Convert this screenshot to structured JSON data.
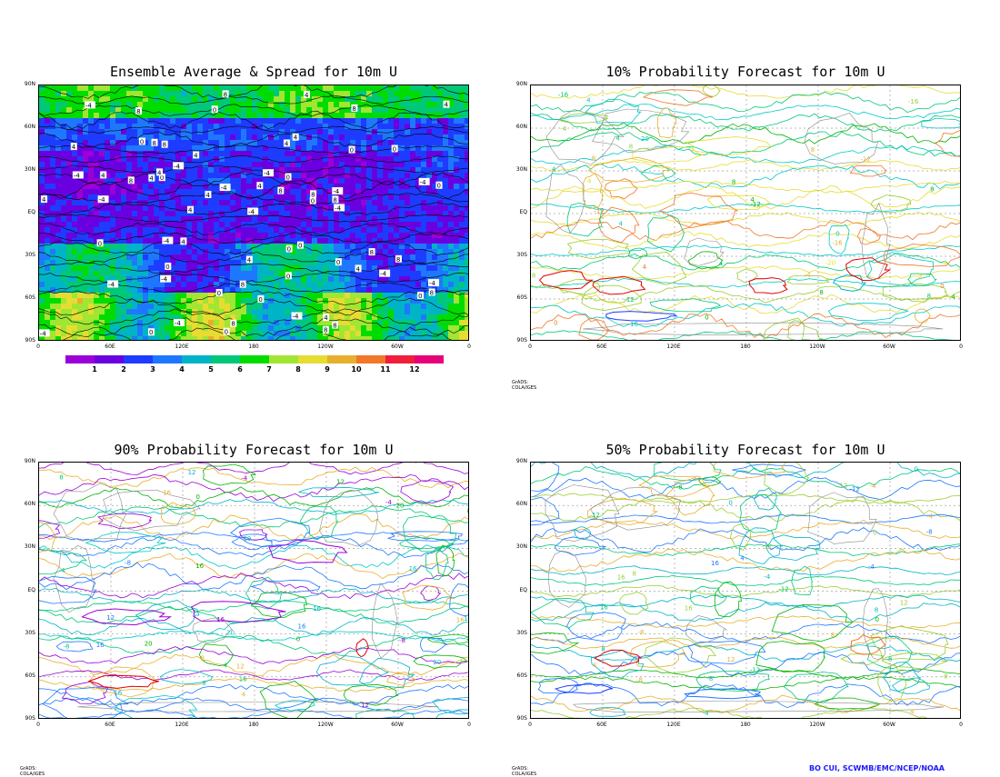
{
  "chart_data": [
    {
      "type": "heatmap",
      "title": "Ensemble Average & Spread for 10m U",
      "y_ticks": [
        "90N",
        "60N",
        "30N",
        "EQ",
        "30S",
        "60S",
        "90S"
      ],
      "x_ticks": [
        "0",
        "60E",
        "120E",
        "180",
        "120W",
        "60W",
        "0"
      ],
      "colorbar": {
        "labels": [
          "1",
          "2",
          "3",
          "4",
          "5",
          "6",
          "7",
          "8",
          "9",
          "10",
          "11",
          "12"
        ],
        "colors": [
          "#9c00d8",
          "#6a00e0",
          "#1e3cff",
          "#1e78ff",
          "#00b4c8",
          "#00c878",
          "#00dc00",
          "#a0e632",
          "#e6dc32",
          "#e6af2d",
          "#f07828",
          "#f01e3c",
          "#e6007a"
        ]
      },
      "contour_labels": [
        "0",
        "4",
        "-4",
        "8",
        "-8",
        "12",
        "-12",
        "16",
        "-16",
        "-20"
      ],
      "credit": "GrADS: COLA/IGES"
    },
    {
      "type": "line",
      "title": "10% Probability Forecast for 10m U",
      "y_ticks": [
        "90N",
        "60N",
        "30N",
        "EQ",
        "30S",
        "60S",
        "90S"
      ],
      "x_ticks": [
        "0",
        "60E",
        "120E",
        "180",
        "120W",
        "60W",
        "0"
      ],
      "contour_labels": [
        "0",
        "4",
        "8",
        "-4",
        "-8",
        "-12",
        "-16",
        "-20",
        "4"
      ],
      "credit": "GrADS: COLA/IGES"
    },
    {
      "type": "line",
      "title": "90% Probability Forecast for 10m U",
      "y_ticks": [
        "90N",
        "60N",
        "30N",
        "EQ",
        "30S",
        "60S",
        "90S"
      ],
      "x_ticks": [
        "0",
        "60E",
        "120E",
        "180",
        "120W",
        "60W",
        "0"
      ],
      "contour_labels": [
        "0",
        "4",
        "8",
        "12",
        "16",
        "20",
        "-4",
        "-8",
        "12",
        "16"
      ],
      "credit": "GrADS: COLA/IGES"
    },
    {
      "type": "line",
      "title": "50% Probability Forecast for 10m U",
      "y_ticks": [
        "90N",
        "60N",
        "30N",
        "EQ",
        "30S",
        "60S",
        "90S"
      ],
      "x_ticks": [
        "0",
        "60E",
        "120E",
        "180",
        "120W",
        "60W",
        "0"
      ],
      "contour_labels": [
        "0",
        "4",
        "8",
        "12",
        "16",
        "-4",
        "-8",
        "-12",
        "4"
      ],
      "credit": "GrADS: COLA/IGES"
    }
  ],
  "author": "BO CUI, SCWMB/EMC/NCEP/NOAA"
}
